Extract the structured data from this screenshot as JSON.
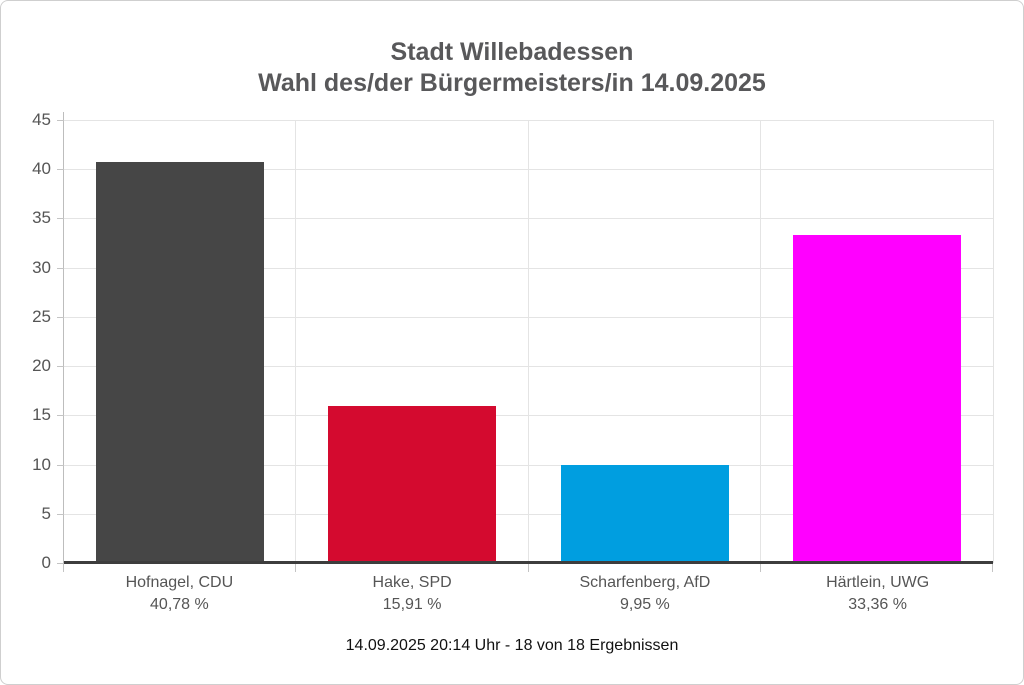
{
  "chart_data": {
    "type": "bar",
    "title": "Stadt Willebadessen",
    "subtitle": "Wahl des/der Bürgermeisters/in 14.09.2025",
    "categories": [
      "Hofnagel, CDU",
      "Hake, SPD",
      "Scharfenberg, AfD",
      "Härtlein, UWG"
    ],
    "values": [
      40.78,
      15.91,
      9.95,
      33.36
    ],
    "value_labels": [
      "40,78 %",
      "15,91 %",
      "9,95 %",
      "33,36 %"
    ],
    "bar_colors": [
      "#464646",
      "#d40a2f",
      "#009ee0",
      "#ff00ff"
    ],
    "ylim": [
      0,
      45
    ],
    "ytick_step": 5,
    "grid": true,
    "legend": "none",
    "xlabel": "",
    "ylabel": "",
    "footer": "14.09.2025 20:14 Uhr - 18 von 18 Ergebnissen"
  },
  "styles": {
    "title_color": "#58585a",
    "axis_text_color": "#555555",
    "gridline_color": "#e4e4e4",
    "baseline_color": "#3d3d3d",
    "card_border_color": "#cfcfcf"
  }
}
